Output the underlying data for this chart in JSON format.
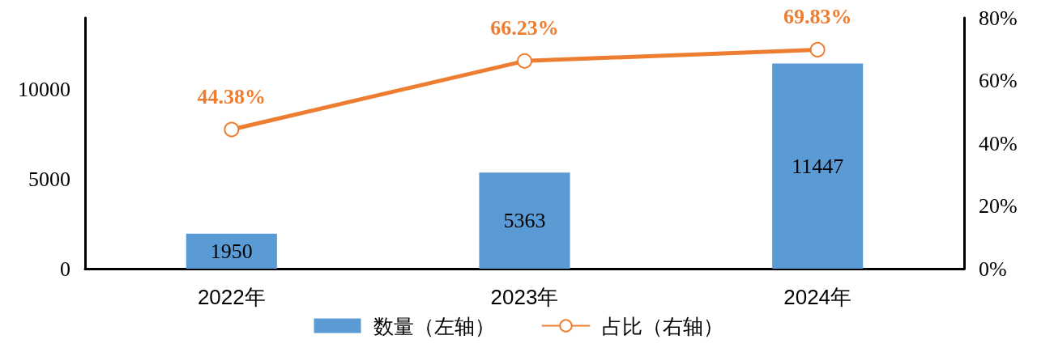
{
  "chart_data": {
    "type": "bar",
    "categories": [
      "2022年",
      "2023年",
      "2024年"
    ],
    "series": [
      {
        "name": "数量（左轴）",
        "color": "#5b9bd5",
        "values": [
          1950,
          5363,
          11447
        ],
        "value_labels": [
          "1950",
          "5363",
          "11447"
        ]
      },
      {
        "name": "占比（右轴）",
        "type": "line",
        "axis": "y2",
        "color": "#ed7d31",
        "values": [
          44.38,
          66.23,
          69.83
        ],
        "value_labels": [
          "44.38%",
          "66.23%",
          "69.83%"
        ]
      }
    ],
    "ylim": [
      0,
      14000
    ],
    "yticks": [
      0,
      5000,
      10000
    ],
    "y2lim": [
      0,
      80
    ],
    "y2ticks": [
      {
        "value": 0,
        "label": "0%"
      },
      {
        "value": 20,
        "label": "20%"
      },
      {
        "value": 40,
        "label": "40%"
      },
      {
        "value": 60,
        "label": "60%"
      },
      {
        "value": 80,
        "label": "80%"
      }
    ],
    "grid": false,
    "legend": "bottom",
    "marker": "circle",
    "line_style": "solid"
  }
}
